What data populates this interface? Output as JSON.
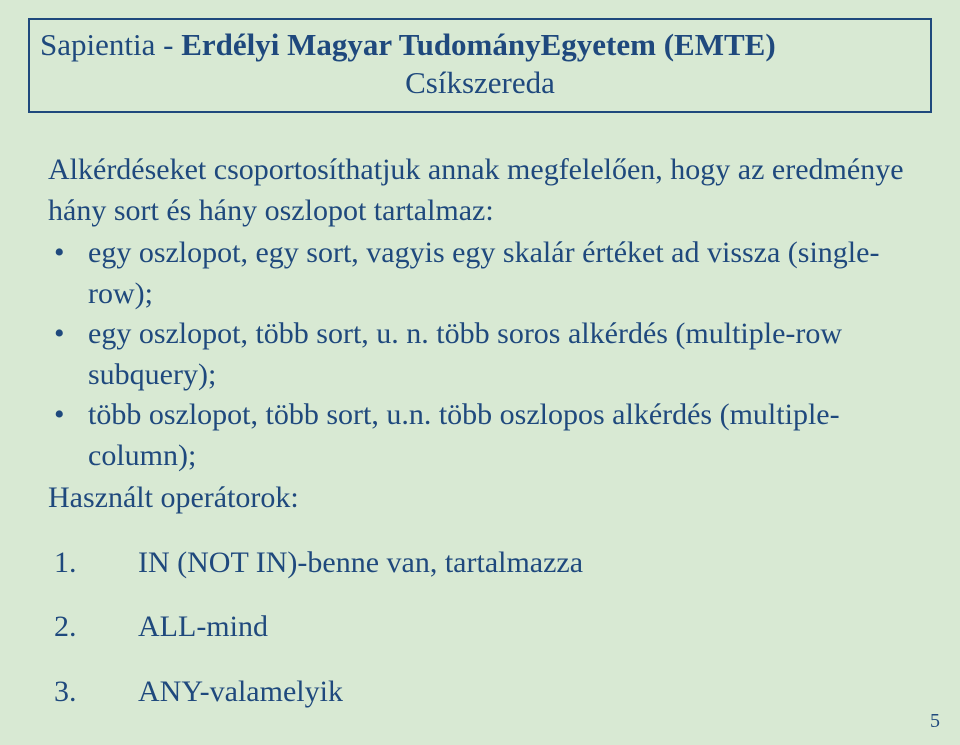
{
  "header": {
    "line1_prefix": "Sapientia - ",
    "line1_bold": "Erdélyi Magyar TudományEgyetem  (EMTE)",
    "line2": "Csíkszereda"
  },
  "content": {
    "intro": "Alkérdéseket csoportosíthatjuk annak megfelelően, hogy az eredménye hány sort és hány oszlopot tartalmaz:",
    "bullets": [
      " egy oszlopot, egy sort, vagyis egy skalár értéket ad vissza (single-row);",
      " egy oszlopot, több sort, u. n. több soros alkérdés (multiple-row subquery);",
      " több oszlopot, több sort, u.n. több oszlopos alkérdés (multiple-column);"
    ],
    "ops_label": "Használt operátorok:",
    "ops": [
      "IN (NOT IN)-benne van, tartalmazza",
      "ALL-mind",
      "ANY-valamelyik"
    ]
  },
  "page_number": "5"
}
